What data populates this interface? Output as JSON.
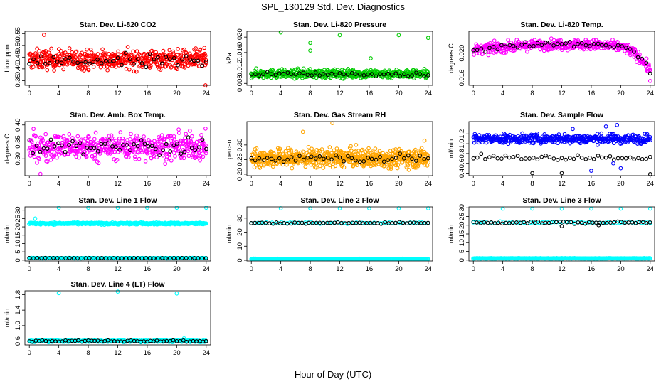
{
  "figure": {
    "title": "SPL_130129  Std. Dev. Diagnostics",
    "xlabel": "Hour of Day (UTC)"
  },
  "chart_data": [
    {
      "type": "scatter",
      "title": "Stan. Dev. Li-820 CO2",
      "ylabel": "Licor ppm",
      "xlim": [
        -0.6,
        24.6
      ],
      "ylim": [
        0.33,
        0.56
      ],
      "xticks": [
        0,
        4,
        8,
        12,
        16,
        20,
        24
      ],
      "yticks": [
        0.35,
        0.4,
        0.45,
        0.5,
        0.55
      ],
      "ytick_labels": [
        "0.35",
        "0.40",
        "0.45",
        "0.50",
        "0.55"
      ],
      "series": [
        {
          "color": "#ff0000",
          "marker": "open-circle",
          "n": 520,
          "base": 0.44,
          "spread": 0.08,
          "outliers": [
            [
              16.0,
              0.325
            ],
            [
              2.0,
              0.545
            ],
            [
              23.9,
              0.33
            ]
          ]
        },
        {
          "color": "#000000",
          "marker": "open-circle",
          "n": 45,
          "base": 0.43,
          "spread": 0.06,
          "outliers": []
        }
      ]
    },
    {
      "type": "scatter",
      "title": "Stan. Dev. Li-820 Pressure",
      "ylabel": "kPa",
      "xlim": [
        -0.6,
        24.6
      ],
      "ylim": [
        0.0075,
        0.0215
      ],
      "xticks": [
        0,
        4,
        8,
        12,
        16,
        20,
        24
      ],
      "yticks": [
        0.008,
        0.012,
        0.016,
        0.02
      ],
      "ytick_labels": [
        "0.008",
        "0.012",
        "0.016",
        "0.020"
      ],
      "series": [
        {
          "color": "#00cc00",
          "marker": "open-circle",
          "n": 500,
          "base": 0.0105,
          "spread": 0.0022,
          "outliers": [
            [
              4.0,
              0.0212
            ],
            [
              8.0,
              0.0185
            ],
            [
              8.0,
              0.0165
            ],
            [
              12.0,
              0.0205
            ],
            [
              16.2,
              0.0145
            ],
            [
              20.0,
              0.0205
            ],
            [
              24.0,
              0.0198
            ]
          ]
        },
        {
          "color": "#000000",
          "marker": "open-circle",
          "n": 45,
          "base": 0.0104,
          "spread": 0.0012,
          "outliers": []
        }
      ]
    },
    {
      "type": "scatter",
      "title": "Stan. Dev. Li-820 Temp.",
      "ylabel": "degrees C",
      "xlim": [
        -0.6,
        24.6
      ],
      "ylim": [
        0.0148,
        0.0235
      ],
      "xticks": [
        0,
        4,
        8,
        12,
        16,
        20,
        24
      ],
      "yticks": [
        0.016,
        0.02
      ],
      "ytick_labels": [
        "0.016",
        "0.020"
      ],
      "series": [
        {
          "color": "#ff00ff",
          "marker": "open-circle",
          "n": 480,
          "trend": "li820temp",
          "spread": 0.0016,
          "outliers": [
            [
              24.0,
              0.0155
            ]
          ]
        },
        {
          "color": "#000000",
          "marker": "open-circle",
          "n": 45,
          "trend": "li820temp",
          "spread": 0.001,
          "outliers": []
        }
      ]
    },
    {
      "type": "scatter",
      "title": "Stan. Dev. Amb. Box Temp.",
      "ylabel": "degrees C",
      "xlim": [
        -0.6,
        24.6
      ],
      "ylim": [
        0.25,
        0.41
      ],
      "xticks": [
        0,
        4,
        8,
        12,
        16,
        20,
        24
      ],
      "yticks": [
        0.3,
        0.35,
        0.4
      ],
      "ytick_labels": [
        "0.30",
        "0.35",
        "0.40"
      ],
      "series": [
        {
          "color": "#ff00ff",
          "marker": "open-circle",
          "n": 520,
          "base": 0.335,
          "spread": 0.075,
          "outliers": [
            [
              1.5,
              0.255
            ]
          ]
        },
        {
          "color": "#000000",
          "marker": "open-circle",
          "n": 50,
          "base": 0.335,
          "spread": 0.055,
          "outliers": []
        }
      ]
    },
    {
      "type": "scatter",
      "title": "Stan. Dev. Gas Stream RH",
      "ylabel": "percent",
      "xlim": [
        -0.6,
        24.6
      ],
      "ylim": [
        0.195,
        0.38
      ],
      "xticks": [
        0,
        4,
        8,
        12,
        16,
        20,
        24
      ],
      "yticks": [
        0.2,
        0.25,
        0.3
      ],
      "ytick_labels": [
        "0.20",
        "0.25",
        "0.30"
      ],
      "series": [
        {
          "color": "#ffa500",
          "marker": "open-circle",
          "n": 700,
          "base": 0.255,
          "spread": 0.06,
          "outliers": [
            [
              11.0,
              0.375
            ],
            [
              7.0,
              0.345
            ],
            [
              23.5,
              0.315
            ]
          ]
        },
        {
          "color": "#000000",
          "marker": "open-circle",
          "n": 45,
          "base": 0.255,
          "spread": 0.03,
          "outliers": []
        }
      ]
    },
    {
      "type": "scatter",
      "title": "Stan. Dev. Sample Flow",
      "ylabel": "ml/min",
      "xlim": [
        -0.6,
        24.6
      ],
      "ylim": [
        0.35,
        1.45
      ],
      "xticks": [
        0,
        4,
        8,
        12,
        16,
        20,
        24
      ],
      "yticks": [
        0.4,
        0.6,
        0.8,
        1.0,
        1.2
      ],
      "ytick_labels": [
        "0.4",
        "0.6",
        "0.8",
        "1.0",
        "1.2"
      ],
      "series": [
        {
          "color": "#0000ff",
          "marker": "open-circle",
          "n": 480,
          "base": 1.1,
          "spread": 0.18,
          "outliers": [
            [
              19.5,
              1.38
            ],
            [
              18.0,
              1.35
            ],
            [
              13.5,
              1.3
            ],
            [
              16.0,
              0.45
            ],
            [
              19.0,
              0.6
            ],
            [
              20.0,
              0.5
            ]
          ]
        },
        {
          "color": "#000000",
          "marker": "open-circle",
          "n": 45,
          "base": 0.72,
          "spread": 0.1,
          "outliers": [
            [
              8.0,
              0.4
            ],
            [
              12.0,
              0.4
            ],
            [
              24.0,
              0.38
            ]
          ]
        }
      ]
    },
    {
      "type": "scatter",
      "title": "Stan. Dev. Line 1 Flow",
      "ylabel": "ml/min",
      "xlim": [
        -0.6,
        24.6
      ],
      "ylim": [
        -0.5,
        32
      ],
      "xticks": [
        0,
        4,
        8,
        12,
        16,
        20,
        24
      ],
      "yticks": [
        0,
        5,
        10,
        15,
        20,
        25,
        30
      ],
      "ytick_labels": [
        "0",
        "5",
        "10",
        "15",
        "20",
        "25",
        "30"
      ],
      "series": [
        {
          "color": "#00ffff",
          "marker": "open-circle",
          "n": 420,
          "base": 22.0,
          "spread": 1.2,
          "outliers": [
            [
              4.0,
              31.5
            ],
            [
              8.0,
              31.5
            ],
            [
              12.0,
              31.5
            ],
            [
              16.0,
              31.5
            ],
            [
              20.0,
              31.5
            ],
            [
              24.0,
              31.5
            ],
            [
              0.8,
              25.0
            ]
          ]
        },
        {
          "color": "#00ffff",
          "marker": "open-circle",
          "n": 300,
          "base": 1.2,
          "spread": 0.3,
          "outliers": []
        },
        {
          "color": "#000000",
          "marker": "open-circle",
          "n": 45,
          "base": 1.2,
          "spread": 0.2,
          "outliers": []
        }
      ]
    },
    {
      "type": "scatter",
      "title": "Stan. Dev. Line 2 Flow",
      "ylabel": "ml/min",
      "xlim": [
        -0.6,
        24.6
      ],
      "ylim": [
        -0.5,
        38
      ],
      "xticks": [
        0,
        4,
        8,
        12,
        16,
        20,
        24
      ],
      "yticks": [
        0,
        10,
        20,
        30
      ],
      "ytick_labels": [
        "0",
        "10",
        "20",
        "30"
      ],
      "series": [
        {
          "color": "#00ffff",
          "marker": "open-circle",
          "n": 350,
          "base": 1.0,
          "spread": 0.3,
          "outliers": [
            [
              4.0,
              37.0
            ],
            [
              8.0,
              37.0
            ],
            [
              12.0,
              37.0
            ],
            [
              16.0,
              37.0
            ],
            [
              20.0,
              37.0
            ],
            [
              24.0,
              37.0
            ]
          ]
        },
        {
          "color": "#00ffff",
          "marker": "open-circle",
          "n": 60,
          "base": 26.5,
          "spread": 1.2,
          "outliers": []
        },
        {
          "color": "#000000",
          "marker": "open-circle",
          "n": 50,
          "base": 26.5,
          "spread": 1.0,
          "outliers": []
        }
      ]
    },
    {
      "type": "scatter",
      "title": "Stan. Dev. Line 3 Flow",
      "ylabel": "ml/min",
      "xlim": [
        -0.6,
        24.6
      ],
      "ylim": [
        -0.5,
        30.5
      ],
      "xticks": [
        0,
        4,
        8,
        12,
        16,
        20,
        24
      ],
      "yticks": [
        0,
        5,
        10,
        15,
        20,
        25,
        30
      ],
      "ytick_labels": [
        "0",
        "5",
        "10",
        "15",
        "20",
        "25",
        "30"
      ],
      "series": [
        {
          "color": "#00ffff",
          "marker": "open-circle",
          "n": 350,
          "base": 1.0,
          "spread": 0.3,
          "outliers": [
            [
              4.0,
              29.5
            ],
            [
              8.0,
              29.5
            ],
            [
              12.0,
              29.5
            ],
            [
              16.0,
              29.5
            ],
            [
              20.0,
              29.5
            ],
            [
              24.0,
              29.5
            ]
          ]
        },
        {
          "color": "#00ffff",
          "marker": "open-circle",
          "n": 60,
          "base": 21.5,
          "spread": 1.2,
          "outliers": []
        },
        {
          "color": "#000000",
          "marker": "open-circle",
          "n": 50,
          "base": 21.5,
          "spread": 1.2,
          "outliers": [
            [
              12.0,
              19.5
            ],
            [
              17.0,
              20.0
            ]
          ]
        }
      ]
    },
    {
      "type": "scatter",
      "title": "Stan. Dev. Line 4 (LT) Flow",
      "ylabel": "ml/min",
      "xlim": [
        -0.6,
        24.6
      ],
      "ylim": [
        0.5,
        1.9
      ],
      "xticks": [
        0,
        4,
        8,
        12,
        16,
        20,
        24
      ],
      "yticks": [
        0.6,
        1.0,
        1.4,
        1.8
      ],
      "ytick_labels": [
        "0.6",
        "1.0",
        "1.4",
        "1.8"
      ],
      "series": [
        {
          "color": "#00ffff",
          "marker": "open-circle",
          "n": 350,
          "base": 0.6,
          "spread": 0.05,
          "outliers": [
            [
              4.0,
              1.84
            ],
            [
              12.0,
              1.88
            ],
            [
              20.0,
              1.83
            ],
            [
              21.0,
              0.67
            ]
          ]
        },
        {
          "color": "#000000",
          "marker": "open-circle",
          "n": 55,
          "base": 0.6,
          "spread": 0.04,
          "outliers": []
        }
      ]
    }
  ]
}
